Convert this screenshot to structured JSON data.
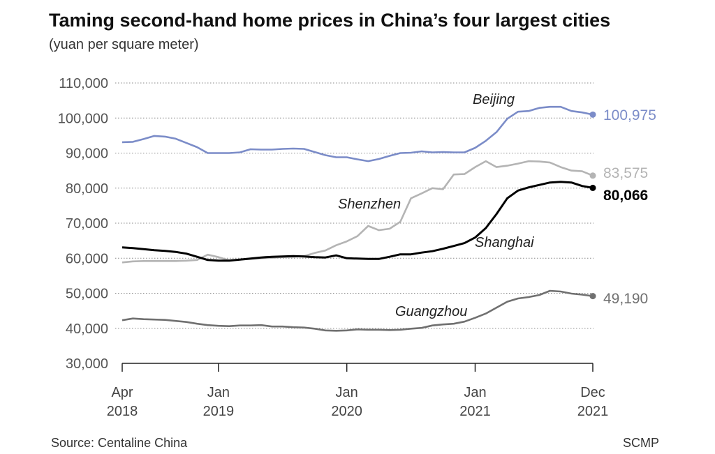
{
  "title": "Taming second-hand home prices in China’s four largest cities",
  "subtitle": "(yuan per square meter)",
  "source": "Source: Centaline China",
  "credit": "SCMP",
  "chart_data": {
    "type": "line",
    "title": "Taming second-hand home prices in China’s four largest cities",
    "ylabel": "(yuan per square meter)",
    "ylim": [
      30000,
      110000
    ],
    "yticks": [
      "30,000",
      "40,000",
      "50,000",
      "60,000",
      "70,000",
      "80,000",
      "90,000",
      "100,000",
      "110,000"
    ],
    "ytick_values": [
      30000,
      40000,
      50000,
      60000,
      70000,
      80000,
      90000,
      100000,
      110000
    ],
    "x_start": "2018-04",
    "x_end": "2021-12",
    "x_frequency": "monthly",
    "xticks": [
      {
        "month": "2018-04",
        "line1": "Apr",
        "line2": "2018"
      },
      {
        "month": "2019-01",
        "line1": "Jan",
        "line2": "2019"
      },
      {
        "month": "2020-01",
        "line1": "Jan",
        "line2": "2020"
      },
      {
        "month": "2021-01",
        "line1": "Jan",
        "line2": "2021"
      },
      {
        "month": "2021-12",
        "line1": "Dec",
        "line2": "2021"
      }
    ],
    "grid": true,
    "series": [
      {
        "name": "Beijing",
        "color": "#7b8cc8",
        "end_label": "100,975",
        "values": [
          93100,
          93200,
          94000,
          94900,
          94700,
          94100,
          92900,
          91700,
          90000,
          90000,
          90000,
          90200,
          91100,
          91000,
          91000,
          91200,
          91300,
          91200,
          90300,
          89400,
          88800,
          88800,
          88200,
          87700,
          88300,
          89200,
          90000,
          90100,
          90500,
          90200,
          90300,
          90200,
          90200,
          91500,
          93500,
          96000,
          99800,
          101800,
          102000,
          102900,
          103200,
          103200,
          102000,
          101600,
          100975
        ]
      },
      {
        "name": "Shenzhen",
        "color": "#b4b4b4",
        "end_label": "83,575",
        "values": [
          58800,
          59100,
          59200,
          59200,
          59200,
          59200,
          59300,
          59500,
          61000,
          60300,
          59400,
          59600,
          59800,
          60000,
          60100,
          60300,
          60400,
          60600,
          61500,
          62200,
          63700,
          64800,
          66300,
          69200,
          68000,
          68400,
          70400,
          77100,
          78500,
          80000,
          79700,
          83900,
          84000,
          86000,
          87700,
          86000,
          86400,
          87000,
          87700,
          87600,
          87300,
          86000,
          85000,
          84800,
          83575
        ]
      },
      {
        "name": "Shanghai",
        "color": "#000000",
        "end_label": "80,066",
        "values": [
          63100,
          62900,
          62600,
          62300,
          62100,
          61800,
          61300,
          60400,
          59500,
          59300,
          59300,
          59600,
          59900,
          60200,
          60400,
          60500,
          60600,
          60500,
          60300,
          60200,
          60800,
          60000,
          59900,
          59800,
          59800,
          60400,
          61100,
          61100,
          61600,
          62000,
          62700,
          63500,
          64300,
          65900,
          68600,
          72600,
          77100,
          79300,
          80200,
          80900,
          81600,
          81800,
          81600,
          80600,
          80066
        ]
      },
      {
        "name": "Guangzhou",
        "color": "#707070",
        "end_label": "49,190",
        "values": [
          42300,
          42800,
          42600,
          42500,
          42400,
          42100,
          41800,
          41300,
          40900,
          40700,
          40600,
          40800,
          40800,
          40900,
          40500,
          40500,
          40300,
          40200,
          39900,
          39400,
          39300,
          39400,
          39700,
          39600,
          39600,
          39500,
          39600,
          39900,
          40100,
          40800,
          41100,
          41300,
          41900,
          43000,
          44200,
          45900,
          47600,
          48500,
          48900,
          49500,
          50700,
          50500,
          49900,
          49600,
          49190
        ]
      }
    ]
  }
}
